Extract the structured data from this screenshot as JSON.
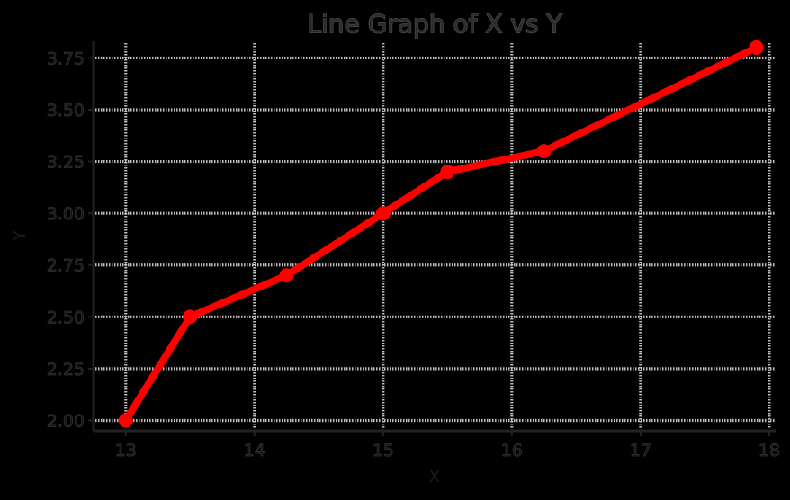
{
  "chart_data": {
    "type": "line",
    "title": "Line Graph of X vs Y",
    "xlabel": "X",
    "ylabel": "Y",
    "xlim": [
      12.75,
      18.05
    ],
    "ylim": [
      1.95,
      3.83
    ],
    "xticks": [
      13,
      14,
      15,
      16,
      17,
      18
    ],
    "yticks": [
      2.0,
      2.25,
      2.5,
      2.75,
      3.0,
      3.25,
      3.5,
      3.75
    ],
    "xtick_labels": [
      "13",
      "14",
      "15",
      "16",
      "17",
      "18"
    ],
    "ytick_labels": [
      "2.00",
      "2.25",
      "2.50",
      "2.75",
      "3.00",
      "3.25",
      "3.50",
      "3.75"
    ],
    "grid": true,
    "series": [
      {
        "x": [
          13.0,
          13.5,
          14.25,
          15.0,
          15.5,
          16.25,
          17.9
        ],
        "y": [
          2.0,
          2.5,
          2.7,
          3.0,
          3.2,
          3.3,
          3.8
        ],
        "color": "#ff0000",
        "marker": "circle"
      }
    ]
  }
}
